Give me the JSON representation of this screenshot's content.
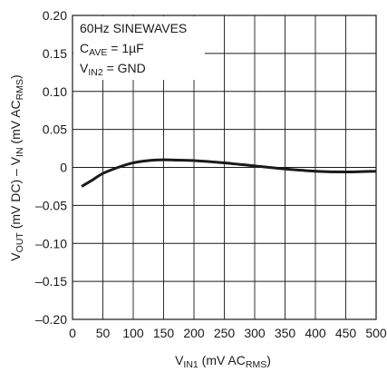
{
  "chart_data": {
    "type": "line",
    "xlabel": {
      "main": "V",
      "sub": "IN1",
      "rest": " (mV AC",
      "sub2": "RMS",
      "end": ")"
    },
    "ylabel": {
      "p1": "V",
      "s1": "OUT",
      "p2": " (mV DC) – V",
      "s2": "IN",
      "p3": " (mV AC",
      "s3": "RMS",
      "p4": ")"
    },
    "xlim": [
      0,
      500
    ],
    "ylim": [
      -0.2,
      0.2
    ],
    "x_ticks": [
      0,
      50,
      100,
      150,
      200,
      250,
      300,
      350,
      400,
      450,
      500
    ],
    "x_tick_labels": [
      "0",
      "50",
      "100",
      "150",
      "200",
      "250",
      "300",
      "350",
      "400",
      "450",
      "500"
    ],
    "y_ticks": [
      0.2,
      0.15,
      0.1,
      0.05,
      0,
      -0.05,
      -0.1,
      -0.15,
      -0.2
    ],
    "y_tick_labels": [
      "0.20",
      "0.15",
      "0.10",
      "0.05",
      "0",
      "–0.05",
      "–0.10",
      "–0.15",
      "–0.20"
    ],
    "grid": true,
    "annotations": [
      {
        "parts": [
          {
            "t": "60Hz SINEWAVES"
          }
        ]
      },
      {
        "parts": [
          {
            "t": "C"
          },
          {
            "t": "AVE",
            "sub": true
          },
          {
            "t": " = 1µF"
          }
        ]
      },
      {
        "parts": [
          {
            "t": "V"
          },
          {
            "t": "IN2",
            "sub": true
          },
          {
            "t": " = GND"
          }
        ]
      }
    ],
    "series": [
      {
        "color": "#1a1a1a",
        "x": [
          15,
          30,
          50,
          75,
          100,
          125,
          150,
          175,
          200,
          250,
          300,
          350,
          400,
          450,
          500
        ],
        "y": [
          -0.025,
          -0.018,
          -0.008,
          0.0,
          0.006,
          0.009,
          0.01,
          0.0095,
          0.009,
          0.006,
          0.002,
          -0.002,
          -0.005,
          -0.006,
          -0.005
        ]
      }
    ]
  }
}
